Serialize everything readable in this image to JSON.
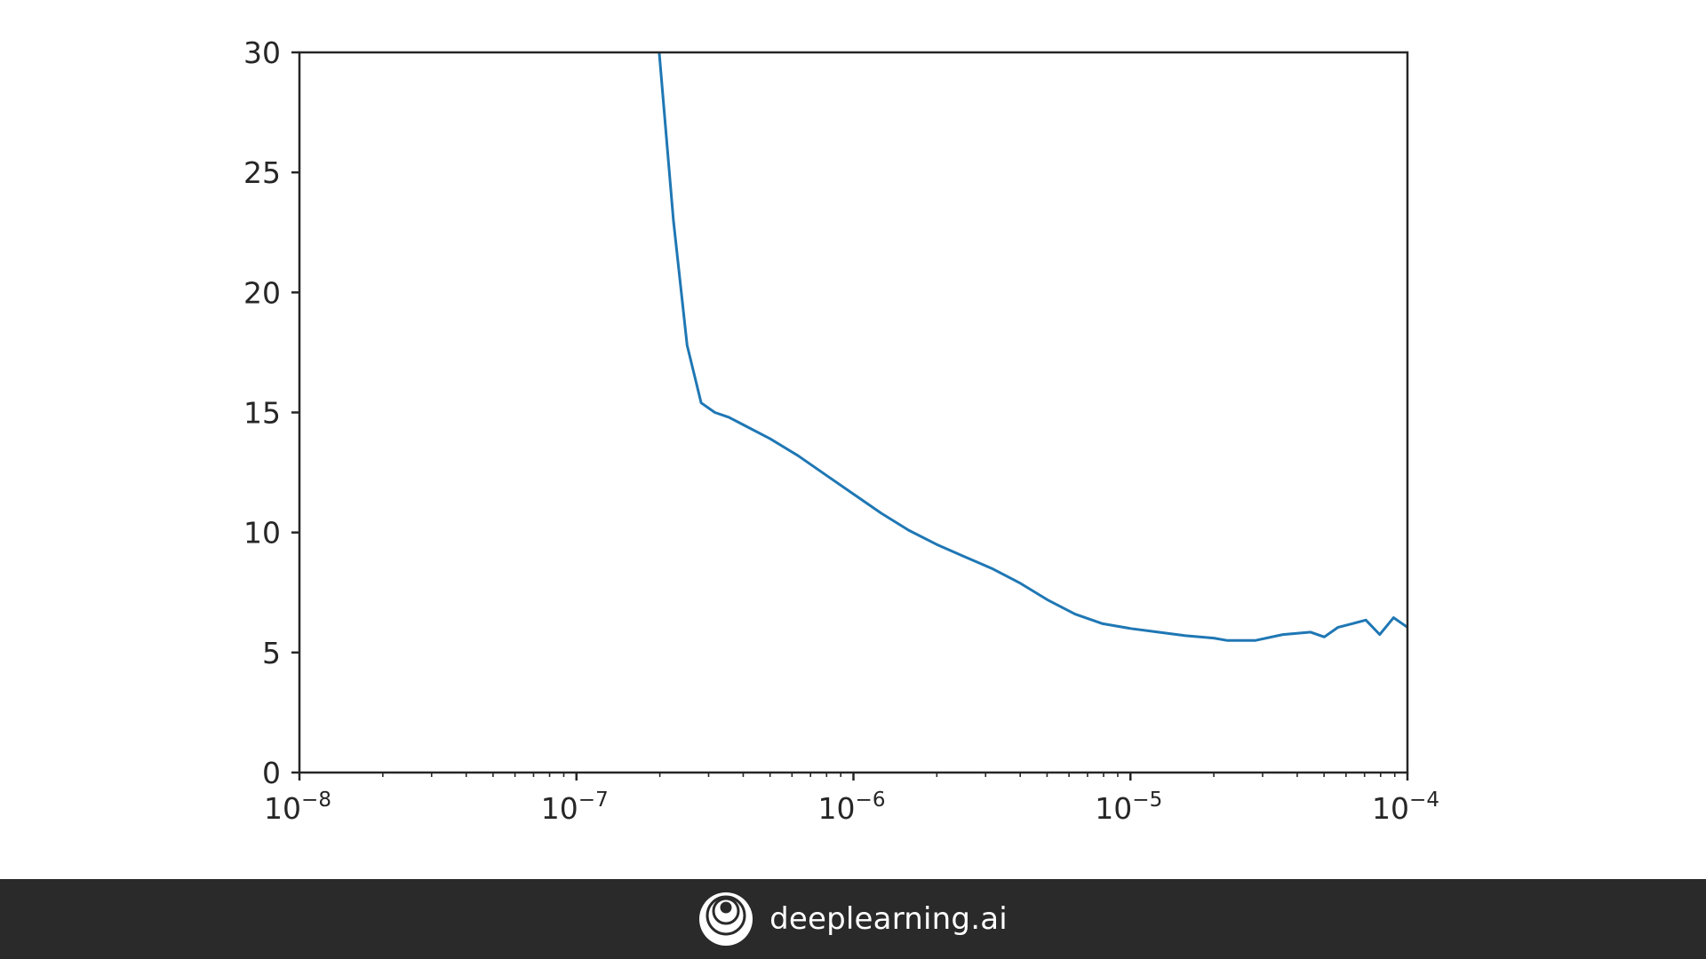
{
  "chart_data": {
    "type": "line",
    "xscale": "log",
    "xlim": [
      1e-08,
      0.0001
    ],
    "ylim": [
      0,
      30
    ],
    "xticks": [
      {
        "value": 1e-08,
        "base": "10",
        "exp": "−8"
      },
      {
        "value": 1e-07,
        "base": "10",
        "exp": "−7"
      },
      {
        "value": 1e-06,
        "base": "10",
        "exp": "−6"
      },
      {
        "value": 1e-05,
        "base": "10",
        "exp": "−5"
      },
      {
        "value": 0.0001,
        "base": "10",
        "exp": "−4"
      }
    ],
    "yticks": [
      {
        "value": 0,
        "label": "0"
      },
      {
        "value": 5,
        "label": "5"
      },
      {
        "value": 10,
        "label": "10"
      },
      {
        "value": 15,
        "label": "15"
      },
      {
        "value": 20,
        "label": "20"
      },
      {
        "value": 25,
        "label": "25"
      },
      {
        "value": 30,
        "label": "30"
      }
    ],
    "grid": false,
    "series": [
      {
        "color": "#1f77b4",
        "x": [
          1.99e-07,
          2.24e-07,
          2.51e-07,
          2.82e-07,
          3.16e-07,
          3.55e-07,
          3.98e-07,
          5.01e-07,
          6.31e-07,
          7.94e-07,
          1e-06,
          1.26e-06,
          1.58e-06,
          2e-06,
          2.51e-06,
          3.16e-06,
          3.98e-06,
          5.01e-06,
          6.31e-06,
          7.94e-06,
          1e-05,
          1.26e-05,
          1.58e-05,
          2e-05,
          2.24e-05,
          2.82e-05,
          3.55e-05,
          4.47e-05,
          5.01e-05,
          5.62e-05,
          6.31e-05,
          7.08e-05,
          7.94e-05,
          8.91e-05,
          0.0001
        ],
        "y": [
          30.0,
          23.0,
          17.8,
          15.4,
          15.0,
          14.8,
          14.5,
          13.9,
          13.2,
          12.4,
          11.6,
          10.8,
          10.1,
          9.5,
          9.0,
          8.5,
          7.9,
          7.2,
          6.6,
          6.2,
          6.0,
          5.85,
          5.7,
          5.6,
          5.5,
          5.5,
          5.75,
          5.85,
          5.65,
          6.05,
          6.2,
          6.35,
          5.75,
          6.45,
          6.05
        ]
      }
    ]
  },
  "footer": {
    "brand_text": "deeplearning.ai",
    "logo_icon": "deeplearning-logo-icon"
  }
}
